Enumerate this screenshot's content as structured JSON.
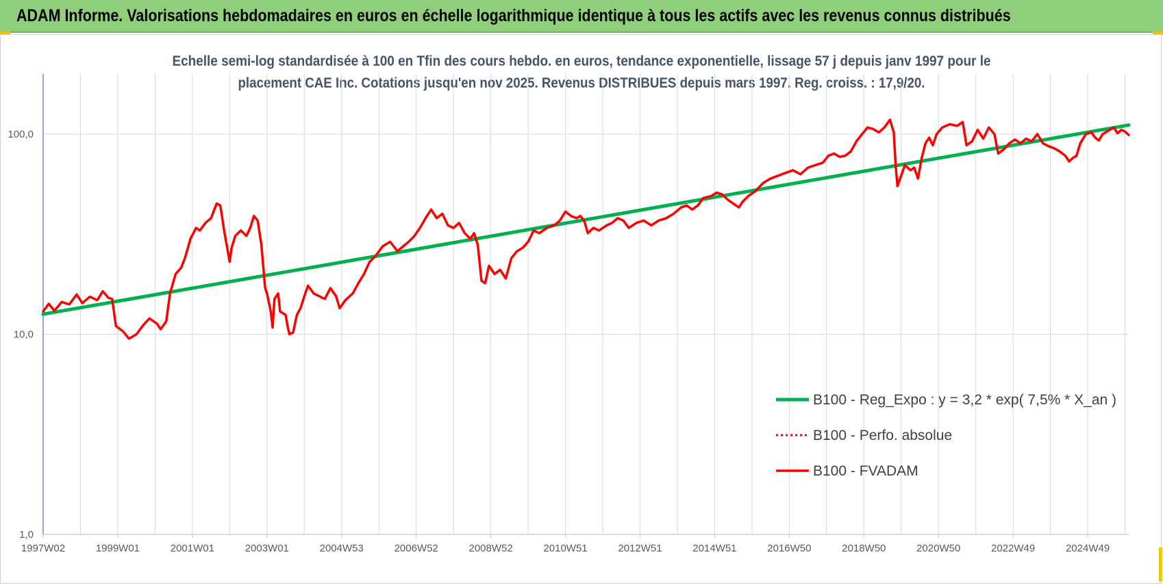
{
  "banner": {
    "title": "ADAM Informe. Valorisations hebdomadaires en euros en échelle logarithmique identique à tous les actifs avec les revenus connus distribués"
  },
  "colors": {
    "banner_bg": "#8fce7b",
    "series_fvadam": "#ff0000",
    "series_perfo": "#ff0000",
    "series_reg": "#00b050",
    "gridline": "#d9d9d9",
    "corner_accent": "#f2c200"
  },
  "chart_data": {
    "type": "line",
    "title_lines": [
      "Echelle semi-log standardisée à 100 en Tfin des cours hebdo. en euros, tendance exponentielle, lissage 57 j depuis janv 1997 pour le",
      "placement CAE Inc. Cotations jusqu'en nov 2025. Revenus DISTRIBUES depuis mars 1997. Reg. croiss. : 17,9/20."
    ],
    "y_scale": "log",
    "ylim": [
      1,
      200
    ],
    "y_ticks": [
      {
        "value": 1,
        "label": "1,0"
      },
      {
        "value": 10,
        "label": "10,0"
      },
      {
        "value": 100,
        "label": "100,0"
      }
    ],
    "xlim": [
      1997.0,
      2026.1
    ],
    "x_ticks": [
      {
        "value": 1997.0,
        "label": "1997W02"
      },
      {
        "value": 1999.0,
        "label": "1999W01"
      },
      {
        "value": 2001.0,
        "label": "2001W01"
      },
      {
        "value": 2003.0,
        "label": "2003W01"
      },
      {
        "value": 2005.0,
        "label": "2004W53"
      },
      {
        "value": 2007.0,
        "label": "2006W52"
      },
      {
        "value": 2009.0,
        "label": "2008W52"
      },
      {
        "value": 2011.0,
        "label": "2010W51"
      },
      {
        "value": 2013.0,
        "label": "2012W51"
      },
      {
        "value": 2015.0,
        "label": "2014W51"
      },
      {
        "value": 2017.0,
        "label": "2016W50"
      },
      {
        "value": 2019.0,
        "label": "2018W50"
      },
      {
        "value": 2021.0,
        "label": "2020W50"
      },
      {
        "value": 2023.0,
        "label": "2022W49"
      },
      {
        "value": 2025.0,
        "label": "2024W49"
      }
    ],
    "grid": true,
    "legend_position": "right-center",
    "series": [
      {
        "name": "B100 - Reg_Expo : y = 3,2 * exp( 7,5% *  X_an )",
        "style": "solid-green",
        "points": [
          [
            1997.0,
            12.6
          ],
          [
            2026.1,
            111.0
          ]
        ]
      },
      {
        "name": "B100 - Perfo. absolue",
        "style": "dotted-red",
        "points": []
      },
      {
        "name": "B100 - FVADAM",
        "style": "solid-red",
        "points": [
          [
            1997.0,
            13.0
          ],
          [
            1997.15,
            14.2
          ],
          [
            1997.3,
            13.1
          ],
          [
            1997.5,
            14.5
          ],
          [
            1997.7,
            14.1
          ],
          [
            1997.9,
            15.8
          ],
          [
            1998.05,
            14.3
          ],
          [
            1998.25,
            15.4
          ],
          [
            1998.45,
            14.8
          ],
          [
            1998.6,
            16.4
          ],
          [
            1998.75,
            15.2
          ],
          [
            1998.85,
            15.0
          ],
          [
            1998.95,
            11.0
          ],
          [
            1999.15,
            10.3
          ],
          [
            1999.3,
            9.5
          ],
          [
            1999.5,
            10.0
          ],
          [
            1999.7,
            11.2
          ],
          [
            1999.85,
            12.0
          ],
          [
            2000.05,
            11.3
          ],
          [
            2000.15,
            10.6
          ],
          [
            2000.3,
            11.6
          ],
          [
            2000.4,
            16.0
          ],
          [
            2000.55,
            20.0
          ],
          [
            2000.7,
            21.5
          ],
          [
            2000.8,
            24.0
          ],
          [
            2000.95,
            30.0
          ],
          [
            2001.1,
            34.0
          ],
          [
            2001.2,
            33.0
          ],
          [
            2001.35,
            36.0
          ],
          [
            2001.5,
            38.0
          ],
          [
            2001.65,
            45.0
          ],
          [
            2001.75,
            44.0
          ],
          [
            2001.85,
            33.0
          ],
          [
            2001.95,
            26.0
          ],
          [
            2002.0,
            23.0
          ],
          [
            2002.05,
            27.0
          ],
          [
            2002.15,
            31.0
          ],
          [
            2002.3,
            33.0
          ],
          [
            2002.45,
            31.0
          ],
          [
            2002.55,
            34.0
          ],
          [
            2002.65,
            39.0
          ],
          [
            2002.75,
            37.0
          ],
          [
            2002.85,
            28.0
          ],
          [
            2002.95,
            17.0
          ],
          [
            2003.0,
            16.0
          ],
          [
            2003.1,
            13.0
          ],
          [
            2003.15,
            10.8
          ],
          [
            2003.2,
            15.0
          ],
          [
            2003.3,
            16.0
          ],
          [
            2003.35,
            13.0
          ],
          [
            2003.5,
            12.5
          ],
          [
            2003.55,
            11.0
          ],
          [
            2003.6,
            10.0
          ],
          [
            2003.7,
            10.2
          ],
          [
            2003.8,
            12.5
          ],
          [
            2003.9,
            13.5
          ],
          [
            2004.0,
            15.5
          ],
          [
            2004.1,
            17.5
          ],
          [
            2004.25,
            16.0
          ],
          [
            2004.4,
            15.5
          ],
          [
            2004.55,
            15.0
          ],
          [
            2004.7,
            17.0
          ],
          [
            2004.85,
            15.5
          ],
          [
            2004.95,
            13.5
          ],
          [
            2005.1,
            14.8
          ],
          [
            2005.3,
            16.0
          ],
          [
            2005.45,
            18.0
          ],
          [
            2005.6,
            20.0
          ],
          [
            2005.75,
            23.0
          ],
          [
            2005.9,
            24.5
          ],
          [
            2006.1,
            27.5
          ],
          [
            2006.3,
            29.0
          ],
          [
            2006.5,
            26.0
          ],
          [
            2006.65,
            27.5
          ],
          [
            2006.8,
            29.0
          ],
          [
            2006.95,
            31.0
          ],
          [
            2007.1,
            34.0
          ],
          [
            2007.25,
            38.0
          ],
          [
            2007.4,
            42.0
          ],
          [
            2007.55,
            38.0
          ],
          [
            2007.7,
            40.0
          ],
          [
            2007.85,
            35.0
          ],
          [
            2008.0,
            34.0
          ],
          [
            2008.15,
            36.0
          ],
          [
            2008.3,
            32.0
          ],
          [
            2008.45,
            30.0
          ],
          [
            2008.55,
            32.0
          ],
          [
            2008.65,
            28.0
          ],
          [
            2008.75,
            18.5
          ],
          [
            2008.85,
            18.0
          ],
          [
            2008.95,
            22.0
          ],
          [
            2009.1,
            20.0
          ],
          [
            2009.25,
            21.0
          ],
          [
            2009.4,
            19.0
          ],
          [
            2009.55,
            24.0
          ],
          [
            2009.7,
            26.0
          ],
          [
            2009.85,
            27.0
          ],
          [
            2010.0,
            29.0
          ],
          [
            2010.15,
            33.0
          ],
          [
            2010.3,
            32.0
          ],
          [
            2010.5,
            34.0
          ],
          [
            2010.7,
            35.0
          ],
          [
            2010.85,
            37.0
          ],
          [
            2011.0,
            41.0
          ],
          [
            2011.15,
            39.0
          ],
          [
            2011.3,
            38.0
          ],
          [
            2011.4,
            39.0
          ],
          [
            2011.5,
            37.0
          ],
          [
            2011.6,
            32.0
          ],
          [
            2011.75,
            34.0
          ],
          [
            2011.9,
            33.0
          ],
          [
            2012.1,
            35.0
          ],
          [
            2012.25,
            36.0
          ],
          [
            2012.4,
            38.0
          ],
          [
            2012.55,
            37.0
          ],
          [
            2012.7,
            34.0
          ],
          [
            2012.9,
            36.0
          ],
          [
            2013.1,
            37.0
          ],
          [
            2013.3,
            35.0
          ],
          [
            2013.5,
            37.0
          ],
          [
            2013.7,
            38.0
          ],
          [
            2013.9,
            40.0
          ],
          [
            2014.1,
            43.0
          ],
          [
            2014.25,
            44.0
          ],
          [
            2014.4,
            42.0
          ],
          [
            2014.55,
            44.0
          ],
          [
            2014.7,
            48.0
          ],
          [
            2014.9,
            49.0
          ],
          [
            2015.05,
            51.0
          ],
          [
            2015.2,
            50.0
          ],
          [
            2015.35,
            47.0
          ],
          [
            2015.5,
            45.0
          ],
          [
            2015.65,
            43.0
          ],
          [
            2015.75,
            46.0
          ],
          [
            2015.9,
            49.0
          ],
          [
            2016.1,
            52.0
          ],
          [
            2016.3,
            57.0
          ],
          [
            2016.5,
            60.0
          ],
          [
            2016.7,
            62.0
          ],
          [
            2016.9,
            64.0
          ],
          [
            2017.1,
            66.0
          ],
          [
            2017.3,
            63.0
          ],
          [
            2017.5,
            68.0
          ],
          [
            2017.7,
            70.0
          ],
          [
            2017.9,
            72.0
          ],
          [
            2018.05,
            78.0
          ],
          [
            2018.2,
            80.0
          ],
          [
            2018.35,
            77.0
          ],
          [
            2018.5,
            78.0
          ],
          [
            2018.65,
            82.0
          ],
          [
            2018.8,
            92.0
          ],
          [
            2018.95,
            100.0
          ],
          [
            2019.1,
            108.0
          ],
          [
            2019.25,
            106.0
          ],
          [
            2019.4,
            102.0
          ],
          [
            2019.55,
            108.0
          ],
          [
            2019.7,
            118.0
          ],
          [
            2019.8,
            102.0
          ],
          [
            2019.85,
            70.0
          ],
          [
            2019.9,
            55.0
          ],
          [
            2020.0,
            62.0
          ],
          [
            2020.1,
            70.0
          ],
          [
            2020.25,
            66.0
          ],
          [
            2020.35,
            68.0
          ],
          [
            2020.45,
            60.0
          ],
          [
            2020.55,
            76.0
          ],
          [
            2020.65,
            90.0
          ],
          [
            2020.75,
            96.0
          ],
          [
            2020.85,
            88.0
          ],
          [
            2020.95,
            100.0
          ],
          [
            2021.1,
            108.0
          ],
          [
            2021.3,
            112.0
          ],
          [
            2021.5,
            110.0
          ],
          [
            2021.65,
            115.0
          ],
          [
            2021.75,
            88.0
          ],
          [
            2021.9,
            92.0
          ],
          [
            2022.05,
            105.0
          ],
          [
            2022.2,
            95.0
          ],
          [
            2022.35,
            108.0
          ],
          [
            2022.5,
            100.0
          ],
          [
            2022.6,
            80.0
          ],
          [
            2022.75,
            84.0
          ],
          [
            2022.9,
            90.0
          ],
          [
            2023.05,
            94.0
          ],
          [
            2023.2,
            90.0
          ],
          [
            2023.35,
            95.0
          ],
          [
            2023.5,
            92.0
          ],
          [
            2023.65,
            100.0
          ],
          [
            2023.8,
            90.0
          ],
          [
            2023.95,
            87.0
          ],
          [
            2024.1,
            85.0
          ],
          [
            2024.25,
            82.0
          ],
          [
            2024.4,
            78.0
          ],
          [
            2024.5,
            73.0
          ],
          [
            2024.6,
            76.0
          ],
          [
            2024.7,
            78.0
          ],
          [
            2024.8,
            90.0
          ],
          [
            2024.95,
            100.0
          ],
          [
            2025.1,
            102.0
          ],
          [
            2025.2,
            96.0
          ],
          [
            2025.3,
            93.0
          ],
          [
            2025.4,
            100.0
          ],
          [
            2025.55,
            104.0
          ],
          [
            2025.7,
            108.0
          ],
          [
            2025.8,
            101.0
          ],
          [
            2025.9,
            105.0
          ],
          [
            2026.0,
            103.0
          ],
          [
            2026.1,
            99.0
          ]
        ]
      }
    ]
  }
}
